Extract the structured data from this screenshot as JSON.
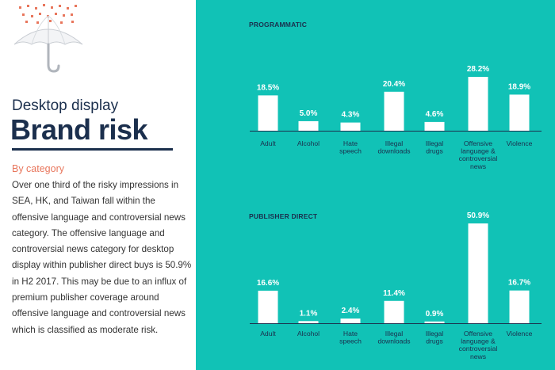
{
  "left_panel": {
    "title_small": "Desktop display",
    "title_big": "Brand risk",
    "category_heading": "By category",
    "body_text": "Over one third of the risky impressions in SEA, HK, and Taiwan fall within the offensive language and controversial news category. The offensive language and controversial news category for desktop display within publisher direct buys is 50.9% in H2 2017. This may be due to an influx of premium publisher coverage around offensive language and controversial news which is classified as moderate risk."
  },
  "colors": {
    "panel_background": "#11c2b6",
    "bar": "#ffffff",
    "title_navy": "#1b2f4d",
    "accent_coral": "#e8765c"
  },
  "icons": [
    "umbrella-icon"
  ],
  "chart_data": [
    {
      "type": "bar",
      "title": "PROGRAMMATIC",
      "categories": [
        "Adult",
        "Alcohol",
        "Hate speech",
        "Illegal downloads",
        "Illegal drugs",
        "Offensive language & controversial news",
        "Violence"
      ],
      "category_label_lines": [
        [
          "Adult"
        ],
        [
          "Alcohol"
        ],
        [
          "Hate",
          "speech"
        ],
        [
          "Illegal",
          "downloads"
        ],
        [
          "Illegal",
          "drugs"
        ],
        [
          "Offensive",
          "language &",
          "controversial",
          "news"
        ],
        [
          "Violence"
        ]
      ],
      "values": [
        18.5,
        5.0,
        4.3,
        20.4,
        4.6,
        28.2,
        18.9
      ],
      "value_labels": [
        "18.5%",
        "5.0%",
        "4.3%",
        "20.4%",
        "4.6%",
        "28.2%",
        "18.9%"
      ],
      "ylim": [
        0,
        28.2
      ],
      "axis_line": true,
      "grid": false
    },
    {
      "type": "bar",
      "title": "PUBLISHER DIRECT",
      "categories": [
        "Adult",
        "Alcohol",
        "Hate speech",
        "Illegal downloads",
        "Illegal drugs",
        "Offensive language & controversial news",
        "Violence"
      ],
      "category_label_lines": [
        [
          "Adult"
        ],
        [
          "Alcohol"
        ],
        [
          "Hate",
          "speech"
        ],
        [
          "Illegal",
          "downloads"
        ],
        [
          "Illegal",
          "drugs"
        ],
        [
          "Offensive",
          "language &",
          "controversial",
          "news"
        ],
        [
          "Violence"
        ]
      ],
      "values": [
        16.6,
        1.1,
        2.4,
        11.4,
        0.9,
        50.9,
        16.7
      ],
      "value_labels": [
        "16.6%",
        "1.1%",
        "2.4%",
        "11.4%",
        "0.9%",
        "50.9%",
        "16.7%"
      ],
      "ylim": [
        0,
        50.9
      ],
      "axis_line": true,
      "grid": false
    }
  ]
}
